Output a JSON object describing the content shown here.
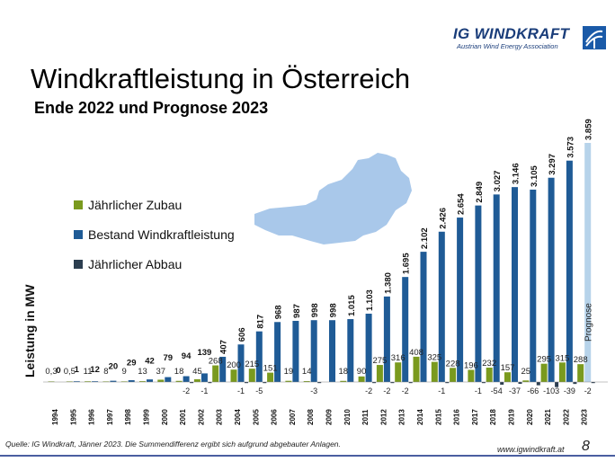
{
  "header": {
    "logo_text": "IG WINDKRAFT",
    "logo_subtitle": "Austrian Wind Energy Association"
  },
  "title": "Windkraftleistung in Österreich",
  "subtitle": "Ende 2022 und Prognose 2023",
  "footer": {
    "source": "Quelle: IG Windkraft, Jänner 2023. Die Summendifferenz ergibt sich aufgrund abgebauter Anlagen.",
    "website": "www.igwindkraft.at",
    "page_number": "8"
  },
  "colors": {
    "zubau": "#7a9a1e",
    "bestand": "#1f5b96",
    "abbau": "#2c3e50",
    "prognose": "#b7d3ea",
    "prognose_zubau": "#d4e29a",
    "map": "#a9c8ea"
  },
  "chart_data": {
    "type": "bar",
    "ylabel": "Leistung in MW",
    "prognose_label": "Prognose",
    "categories": [
      "1994",
      "1995",
      "1996",
      "1997",
      "1998",
      "1999",
      "2000",
      "2001",
      "2002",
      "2003",
      "2004",
      "2005",
      "2006",
      "2007",
      "2008",
      "2009",
      "2010",
      "2011",
      "2012",
      "2013",
      "2014",
      "2015",
      "2016",
      "2017",
      "2018",
      "2019",
      "2020",
      "2021",
      "2022",
      "2023"
    ],
    "series": [
      {
        "name": "Jährlicher Zubau",
        "values": [
          0.3,
          0.5,
          11,
          8,
          9,
          13,
          37,
          18,
          45,
          268,
          200,
          215,
          151,
          19,
          14,
          0,
          18,
          90,
          275,
          316,
          408,
          325,
          228,
          196,
          232,
          157,
          25,
          295,
          315,
          288
        ],
        "labels": [
          "0,3",
          "0,5",
          "11",
          "8",
          "9",
          "13",
          "37",
          "18",
          "45",
          "268",
          "200",
          "215",
          "151",
          "19",
          "14",
          "",
          "18",
          "90",
          "275",
          "316",
          "408",
          "325",
          "228",
          "196",
          "232",
          "157",
          "25",
          "295",
          "315",
          "288"
        ]
      },
      {
        "name": "Bestand Windkraftleistung",
        "values": [
          0,
          1,
          12,
          20,
          29,
          42,
          79,
          94,
          139,
          407,
          606,
          817,
          968,
          987,
          998,
          998,
          1015,
          1103,
          1380,
          1695,
          2102,
          2426,
          2654,
          2849,
          3027,
          3146,
          3105,
          3297,
          3573,
          3859
        ],
        "labels": [
          "0",
          "1",
          "12",
          "20",
          "29",
          "42",
          "79",
          "94",
          "139",
          "407",
          "606",
          "817",
          "968",
          "987",
          "998",
          "998",
          "1.015",
          "1.103",
          "1.380",
          "1.695",
          "2.102",
          "2.426",
          "2.654",
          "2.849",
          "3.027",
          "3.146",
          "3.105",
          "3.297",
          "3.573",
          "3.859"
        ]
      },
      {
        "name": "Jährlicher Abbau",
        "values": [
          0,
          0,
          0,
          0,
          0,
          0,
          0,
          -2,
          -1,
          0,
          -1,
          -5,
          0,
          0,
          -3,
          0,
          0,
          -2,
          -2,
          -2,
          0,
          -1,
          0,
          -1,
          -54,
          -37,
          -66,
          -103,
          -39,
          -2
        ],
        "labels": [
          "",
          "",
          "",
          "",
          "",
          "",
          "",
          "-2",
          "-1",
          "",
          "-1",
          "-5",
          "",
          "",
          "-3",
          "",
          "",
          "-2",
          "-2",
          "-2",
          "",
          "-1",
          "",
          "-1",
          "-54",
          "-37",
          "-66",
          "-103",
          "-39",
          "-2"
        ]
      }
    ],
    "legend_position": "left"
  }
}
